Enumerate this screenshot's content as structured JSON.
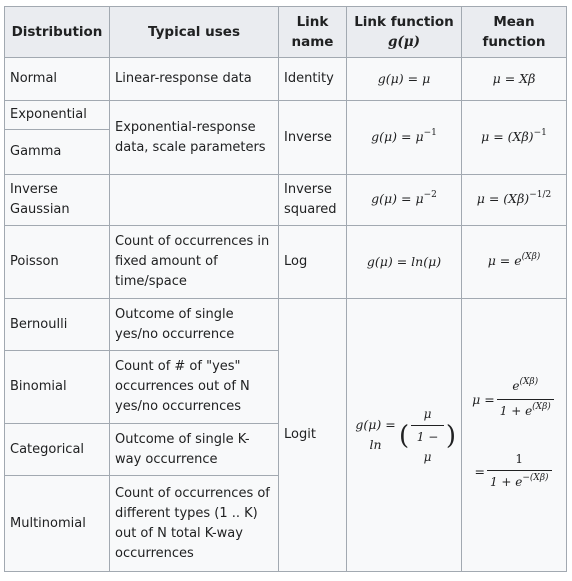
{
  "headers": {
    "distribution": "Distribution",
    "typical_uses": "Typical uses",
    "link_name_l1": "Link",
    "link_name_l2": "name",
    "link_function_l1": "Link function",
    "link_function_math": "g(μ)",
    "mean_function_l1": "Mean",
    "mean_function_l2": "function"
  },
  "rows": {
    "normal": {
      "distribution": "Normal",
      "uses": "Linear-response data",
      "link_name": "Identity",
      "link_fn": "g(μ) = μ",
      "mean_fn": "μ = Xβ"
    },
    "exponential": {
      "distribution": "Exponential"
    },
    "gamma": {
      "distribution": "Gamma",
      "uses": "Exponential-response data, scale parameters",
      "link_name": "Inverse",
      "link_fn_base": "g(μ) = μ",
      "link_fn_exp": "−1",
      "mean_fn_base": "μ = (Xβ)",
      "mean_fn_exp": "−1"
    },
    "inverse_gaussian": {
      "distribution": "Inverse Gaussian",
      "uses": "",
      "link_name": "Inverse squared",
      "link_fn_base": "g(μ) = μ",
      "link_fn_exp": "−2",
      "mean_fn_base": "μ = (Xβ)",
      "mean_fn_exp": "−1/2"
    },
    "poisson": {
      "distribution": "Poisson",
      "uses": "Count of occurrences in fixed amount of time/space",
      "link_name": "Log",
      "link_fn": "g(μ) = ln(μ)",
      "mean_fn_base": "μ = e",
      "mean_fn_exp": "(Xβ)"
    },
    "bernoulli": {
      "distribution": "Bernoulli",
      "uses": "Outcome of single yes/no occurrence"
    },
    "binomial": {
      "distribution": "Binomial",
      "uses": "Count of # of \"yes\" occurrences out of N yes/no occurrences"
    },
    "categorical": {
      "distribution": "Categorical",
      "uses": "Outcome of single K-way occurrence"
    },
    "multinomial": {
      "distribution": "Multinomial",
      "uses": "Count of occurrences of different types (1 .. K) out of N total K-way occurrences"
    },
    "logit": {
      "link_name": "Logit",
      "link_fn_lhs": "g(μ) = ln",
      "link_fn_num": "μ",
      "link_fn_den": "1 − μ",
      "mean_fn_lhs": "μ =",
      "mean_fn_num": "e",
      "mean_fn_num_exp": "(Xβ)",
      "mean_fn_den": "1 + e",
      "mean_fn_den_exp": "(Xβ)",
      "mean_fn2_lhs": "=",
      "mean_fn2_num": "1",
      "mean_fn2_den": "1 + e",
      "mean_fn2_den_exp": "−(Xβ)"
    }
  }
}
